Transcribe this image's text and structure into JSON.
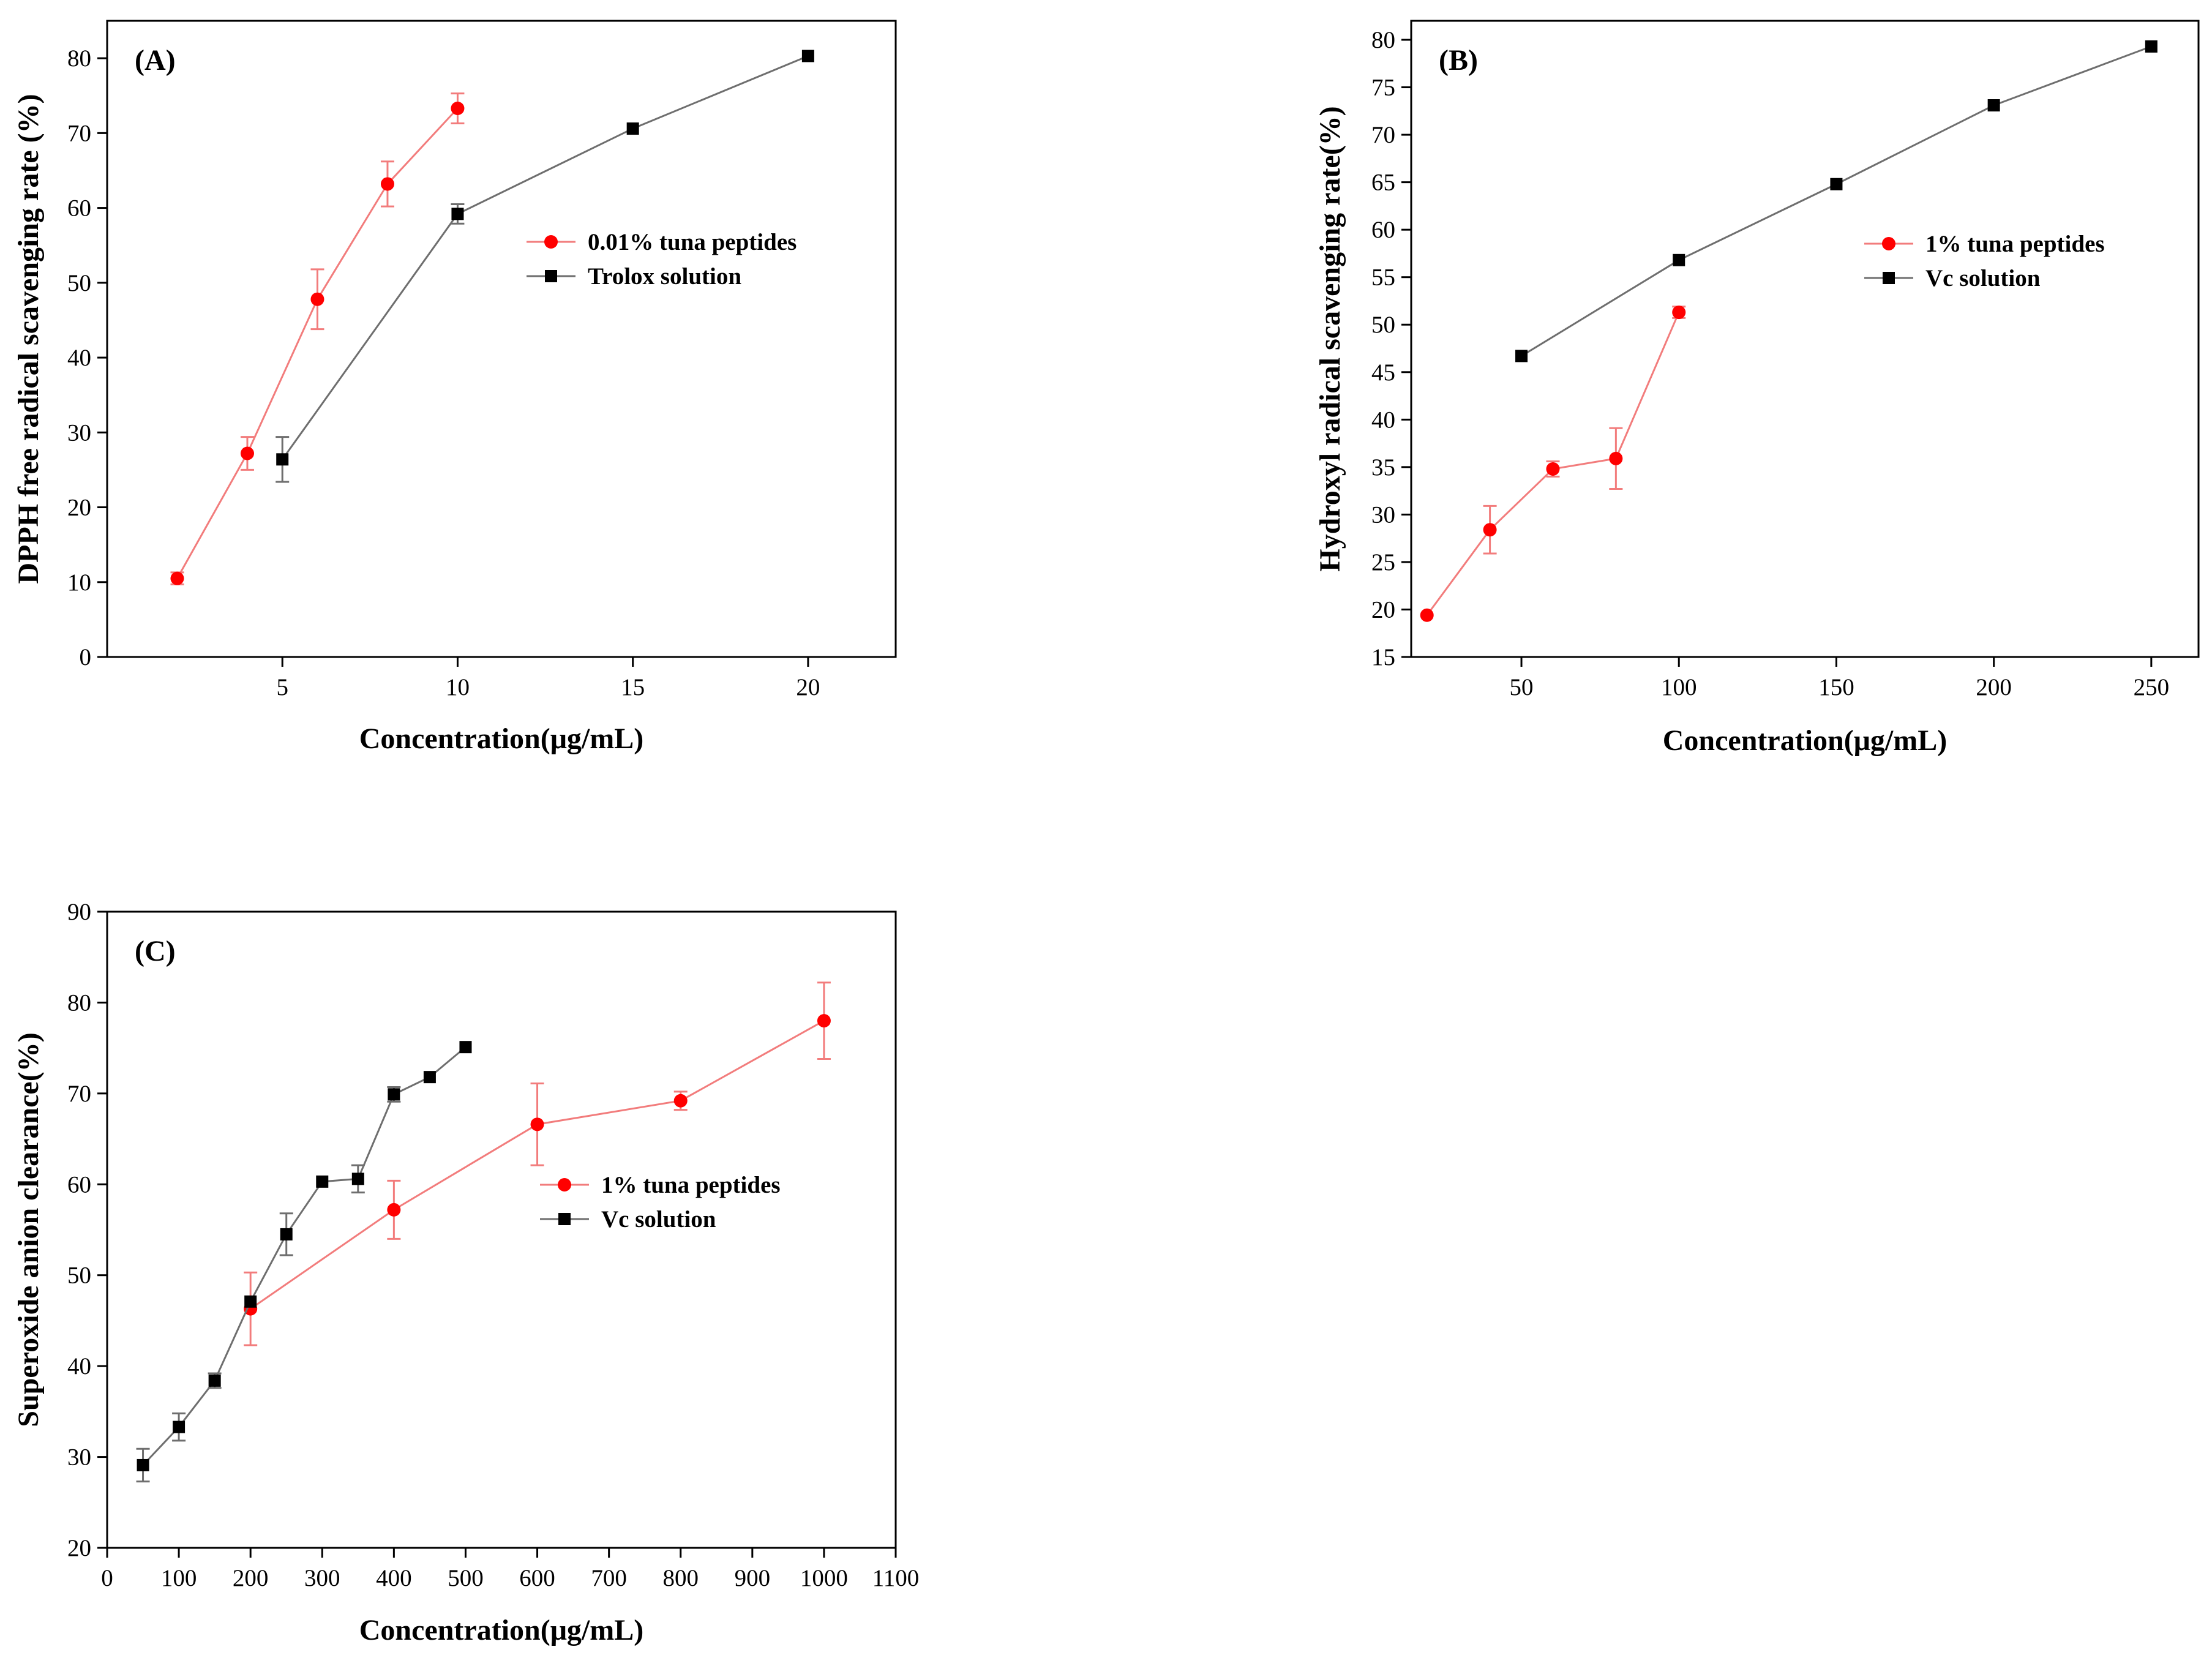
{
  "chart_data": [
    {
      "type": "line",
      "panel_label": "(A)",
      "xlabel": "Concentration(μg/mL)",
      "ylabel": "DPPH free radical scavenging rate (%)",
      "xlim": [
        0,
        22.5
      ],
      "ylim": [
        0,
        85
      ],
      "xticks": [
        5,
        10,
        15,
        20
      ],
      "yticks": [
        0,
        10,
        20,
        30,
        40,
        50,
        60,
        70,
        80
      ],
      "legend_position": "center-right",
      "series": [
        {
          "name": "0.01% tuna peptides",
          "color": "#ff0000",
          "marker": "circle",
          "x": [
            2,
            4,
            6,
            8,
            10
          ],
          "y": [
            10.5,
            27.2,
            47.8,
            63.2,
            73.3
          ],
          "err": [
            0.8,
            2.2,
            4.0,
            3.0,
            2.0
          ]
        },
        {
          "name": "Trolox solution",
          "color": "#000000",
          "marker": "square",
          "x": [
            5,
            10,
            15,
            20
          ],
          "y": [
            26.4,
            59.2,
            70.6,
            80.3
          ],
          "err": [
            3.0,
            1.3,
            0,
            0
          ]
        }
      ]
    },
    {
      "type": "line",
      "panel_label": "(B)",
      "xlabel": "Concentration(μg/mL)",
      "ylabel": "Hydroxyl radical scavenging rate(%)",
      "xlim": [
        15,
        265
      ],
      "ylim": [
        15,
        82
      ],
      "xticks": [
        50,
        100,
        150,
        200,
        250
      ],
      "yticks": [
        15,
        20,
        25,
        30,
        35,
        40,
        45,
        50,
        55,
        60,
        65,
        70,
        75,
        80
      ],
      "legend_position": "center-right",
      "series": [
        {
          "name": "1% tuna peptides",
          "color": "#ff0000",
          "marker": "circle",
          "x": [
            20,
            40,
            60,
            80,
            100
          ],
          "y": [
            19.4,
            28.4,
            34.8,
            35.9,
            51.3
          ],
          "err": [
            0,
            2.5,
            0.8,
            3.2,
            0.6
          ]
        },
        {
          "name": "Vc solution",
          "color": "#000000",
          "marker": "square",
          "x": [
            50,
            100,
            150,
            200,
            250
          ],
          "y": [
            46.7,
            56.8,
            64.8,
            73.1,
            79.3
          ],
          "err": [
            0,
            0,
            0,
            0,
            0
          ]
        }
      ]
    },
    {
      "type": "line",
      "panel_label": "(C)",
      "xlabel": "Concentration(μg/mL)",
      "ylabel": "Superoxide anion clearance(%)",
      "xlim": [
        0,
        1100
      ],
      "ylim": [
        20,
        90
      ],
      "xticks": [
        0,
        100,
        200,
        300,
        400,
        500,
        600,
        700,
        800,
        900,
        1000,
        1100
      ],
      "yticks": [
        20,
        30,
        40,
        50,
        60,
        70,
        80,
        90
      ],
      "legend_position": "center-right",
      "series": [
        {
          "name": "1% tuna peptides",
          "color": "#ff0000",
          "marker": "circle",
          "x": [
            200,
            400,
            600,
            800,
            1000
          ],
          "y": [
            46.3,
            57.2,
            66.6,
            69.2,
            78.0
          ],
          "err": [
            4.0,
            3.2,
            4.5,
            1.0,
            4.2
          ]
        },
        {
          "name": "Vc solution",
          "color": "#000000",
          "marker": "square",
          "x": [
            50,
            100,
            150,
            200,
            250,
            300,
            350,
            400,
            450,
            500
          ],
          "y": [
            29.1,
            33.3,
            38.4,
            47.1,
            54.5,
            60.3,
            60.6,
            69.9,
            71.8,
            75.1
          ],
          "err": [
            1.8,
            1.5,
            0.8,
            0,
            2.3,
            0,
            1.5,
            0.8,
            0,
            0
          ]
        }
      ]
    }
  ]
}
